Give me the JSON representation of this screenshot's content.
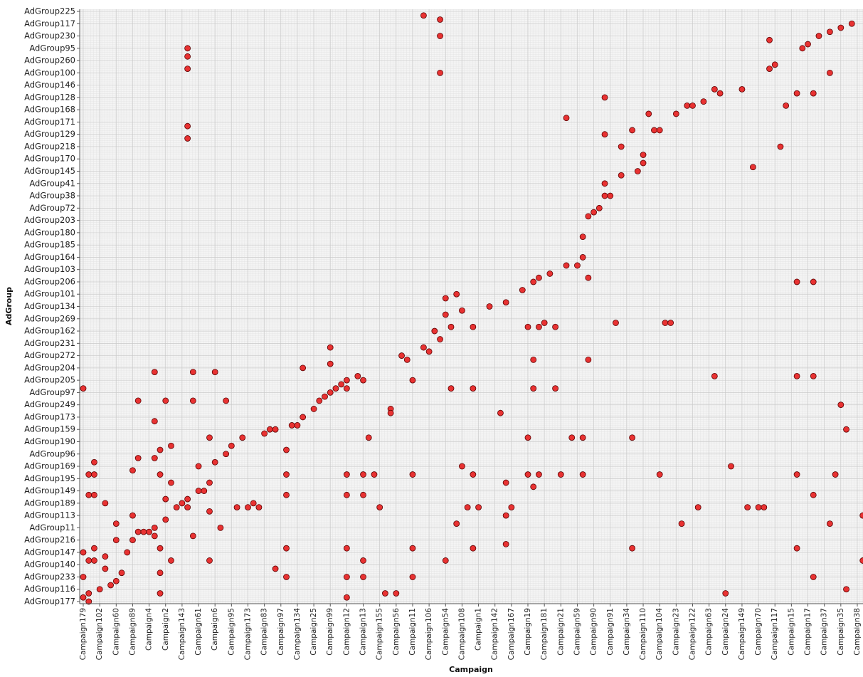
{
  "chart_data": {
    "type": "scatter",
    "x_label": "Campaign",
    "y_label": "AdGroup",
    "color": "#e83232",
    "edge_color": "#5a0000",
    "grid": true,
    "xlim": [
      -0.65,
      142.04
    ],
    "ylim": [
      -0.52,
      144.52
    ],
    "xticks": [
      {
        "value": 0,
        "label": "Campaign179"
      },
      {
        "value": 3,
        "label": "Campaign102"
      },
      {
        "value": 6,
        "label": "Campaign60"
      },
      {
        "value": 9,
        "label": "Campaign89"
      },
      {
        "value": 12,
        "label": "Campaign4"
      },
      {
        "value": 15,
        "label": "Campaign2"
      },
      {
        "value": 18,
        "label": "Campaign143"
      },
      {
        "value": 21,
        "label": "Campaign61"
      },
      {
        "value": 24,
        "label": "Campaign6"
      },
      {
        "value": 27,
        "label": "Campaign95"
      },
      {
        "value": 30,
        "label": "Campaign173"
      },
      {
        "value": 33,
        "label": "Campaign83"
      },
      {
        "value": 36,
        "label": "Campaign97"
      },
      {
        "value": 39,
        "label": "Campaign134"
      },
      {
        "value": 42,
        "label": "Campaign25"
      },
      {
        "value": 45,
        "label": "Campaign99"
      },
      {
        "value": 48,
        "label": "Campaign12"
      },
      {
        "value": 51,
        "label": "Campaign13"
      },
      {
        "value": 54,
        "label": "Campaign155"
      },
      {
        "value": 57,
        "label": "Campaign56"
      },
      {
        "value": 60,
        "label": "Campaign11"
      },
      {
        "value": 63,
        "label": "Campaign106"
      },
      {
        "value": 66,
        "label": "Campaign54"
      },
      {
        "value": 69,
        "label": "Campaign108"
      },
      {
        "value": 72,
        "label": "Campaign1"
      },
      {
        "value": 75,
        "label": "Campaign142"
      },
      {
        "value": 78,
        "label": "Campaign167"
      },
      {
        "value": 81,
        "label": "Campaign19"
      },
      {
        "value": 84,
        "label": "Campaign181"
      },
      {
        "value": 87,
        "label": "Campaign21"
      },
      {
        "value": 90,
        "label": "Campaign59"
      },
      {
        "value": 93,
        "label": "Campaign90"
      },
      {
        "value": 96,
        "label": "Campaign91"
      },
      {
        "value": 99,
        "label": "Campaign34"
      },
      {
        "value": 102,
        "label": "Campaign110"
      },
      {
        "value": 105,
        "label": "Campaign104"
      },
      {
        "value": 108,
        "label": "Campaign23"
      },
      {
        "value": 111,
        "label": "Campaign122"
      },
      {
        "value": 114,
        "label": "Campaign63"
      },
      {
        "value": 117,
        "label": "Campaign24"
      },
      {
        "value": 120,
        "label": "Campaign149"
      },
      {
        "value": 123,
        "label": "Campaign70"
      },
      {
        "value": 126,
        "label": "Campaign117"
      },
      {
        "value": 129,
        "label": "Campaign15"
      },
      {
        "value": 132,
        "label": "Campaign17"
      },
      {
        "value": 135,
        "label": "Campaign37"
      },
      {
        "value": 138,
        "label": "Campaign35"
      },
      {
        "value": 141,
        "label": "Campaign38"
      }
    ],
    "yticks": [
      {
        "value": 0,
        "label": "AdGroup177"
      },
      {
        "value": 3,
        "label": "AdGroup116"
      },
      {
        "value": 6,
        "label": "AdGroup233"
      },
      {
        "value": 9,
        "label": "AdGroup140"
      },
      {
        "value": 12,
        "label": "AdGroup147"
      },
      {
        "value": 15,
        "label": "AdGroup216"
      },
      {
        "value": 18,
        "label": "AdGroup11"
      },
      {
        "value": 21,
        "label": "AdGroup113"
      },
      {
        "value": 24,
        "label": "AdGroup189"
      },
      {
        "value": 27,
        "label": "AdGroup149"
      },
      {
        "value": 30,
        "label": "AdGroup195"
      },
      {
        "value": 33,
        "label": "AdGroup169"
      },
      {
        "value": 36,
        "label": "AdGroup96"
      },
      {
        "value": 39,
        "label": "AdGroup190"
      },
      {
        "value": 42,
        "label": "AdGroup159"
      },
      {
        "value": 45,
        "label": "AdGroup173"
      },
      {
        "value": 48,
        "label": "AdGroup249"
      },
      {
        "value": 51,
        "label": "AdGroup97"
      },
      {
        "value": 54,
        "label": "AdGroup205"
      },
      {
        "value": 57,
        "label": "AdGroup204"
      },
      {
        "value": 60,
        "label": "AdGroup272"
      },
      {
        "value": 63,
        "label": "AdGroup231"
      },
      {
        "value": 66,
        "label": "AdGroup162"
      },
      {
        "value": 69,
        "label": "AdGroup269"
      },
      {
        "value": 72,
        "label": "AdGroup134"
      },
      {
        "value": 75,
        "label": "AdGroup101"
      },
      {
        "value": 78,
        "label": "AdGroup206"
      },
      {
        "value": 81,
        "label": "AdGroup103"
      },
      {
        "value": 84,
        "label": "AdGroup164"
      },
      {
        "value": 87,
        "label": "AdGroup185"
      },
      {
        "value": 90,
        "label": "AdGroup180"
      },
      {
        "value": 93,
        "label": "AdGroup203"
      },
      {
        "value": 96,
        "label": "AdGroup72"
      },
      {
        "value": 99,
        "label": "AdGroup38"
      },
      {
        "value": 102,
        "label": "AdGroup41"
      },
      {
        "value": 105,
        "label": "AdGroup145"
      },
      {
        "value": 108,
        "label": "AdGroup170"
      },
      {
        "value": 111,
        "label": "AdGroup218"
      },
      {
        "value": 114,
        "label": "AdGroup129"
      },
      {
        "value": 117,
        "label": "AdGroup171"
      },
      {
        "value": 120,
        "label": "AdGroup168"
      },
      {
        "value": 123,
        "label": "AdGroup128"
      },
      {
        "value": 126,
        "label": "AdGroup146"
      },
      {
        "value": 129,
        "label": "AdGroup100"
      },
      {
        "value": 132,
        "label": "AdGroup260"
      },
      {
        "value": 135,
        "label": "AdGroup95"
      },
      {
        "value": 138,
        "label": "AdGroup230"
      },
      {
        "value": 141,
        "label": "AdGroup117"
      },
      {
        "value": 144,
        "label": "AdGroup225"
      }
    ],
    "x": [
      0,
      0,
      0,
      0,
      1,
      1,
      1,
      2,
      2,
      1,
      2,
      2,
      2,
      1,
      3,
      4,
      4,
      4,
      5,
      6,
      6,
      6,
      7,
      8,
      9,
      9,
      9,
      10,
      10,
      10,
      11,
      12,
      13,
      13,
      13,
      13,
      13,
      14,
      14,
      14,
      14,
      14,
      15,
      15,
      15,
      16,
      16,
      16,
      17,
      18,
      19,
      19,
      19,
      19,
      19,
      19,
      19,
      20,
      20,
      20,
      21,
      21,
      22,
      23,
      23,
      23,
      23,
      24,
      24,
      25,
      26,
      26,
      27,
      28,
      29,
      30,
      31,
      32,
      33,
      34,
      35,
      35,
      37,
      37,
      37,
      37,
      37,
      38,
      39,
      40,
      40,
      42,
      43,
      44,
      45,
      45,
      45,
      46,
      47,
      48,
      48,
      48,
      48,
      48,
      48,
      48,
      50,
      51,
      51,
      51,
      51,
      51,
      52,
      53,
      54,
      55,
      56,
      56,
      57,
      58,
      59,
      60,
      60,
      60,
      60,
      62,
      62,
      63,
      64,
      65,
      65,
      65,
      65,
      66,
      66,
      66,
      67,
      67,
      68,
      68,
      69,
      69,
      71,
      71,
      71,
      71,
      70,
      72,
      74,
      76,
      77,
      77,
      77,
      77,
      78,
      80,
      81,
      81,
      81,
      82,
      82,
      82,
      82,
      83,
      83,
      83,
      84,
      85,
      86,
      86,
      87,
      88,
      88,
      89,
      90,
      91,
      91,
      91,
      91,
      92,
      92,
      92,
      93,
      94,
      95,
      95,
      95,
      95,
      96,
      97,
      98,
      98,
      100,
      100,
      100,
      101,
      102,
      102,
      103,
      104,
      105,
      105,
      106,
      107,
      108,
      109,
      110,
      111,
      113,
      112,
      115,
      116,
      115,
      117,
      118,
      120,
      122,
      121,
      123,
      124,
      125,
      125,
      126,
      127,
      128,
      130,
      130,
      130,
      130,
      130,
      131,
      132,
      133,
      133,
      133,
      133,
      133,
      134,
      136,
      136,
      136,
      137,
      138,
      138,
      139,
      139,
      140,
      142,
      142
    ],
    "y": [
      52,
      12,
      6,
      1,
      2,
      0,
      31,
      34,
      31,
      26,
      26,
      13,
      10,
      10,
      3,
      11,
      8,
      24,
      4,
      5,
      15,
      19,
      7,
      12,
      15,
      21,
      32,
      35,
      49,
      17,
      17,
      17,
      18,
      16,
      56,
      44,
      35,
      37,
      31,
      13,
      7,
      2,
      49,
      25,
      20,
      38,
      29,
      10,
      23,
      24,
      25,
      135,
      133,
      130,
      116,
      113,
      23,
      56,
      49,
      16,
      33,
      27,
      27,
      40,
      29,
      22,
      10,
      56,
      34,
      18,
      49,
      36,
      38,
      23,
      40,
      23,
      24,
      23,
      41,
      42,
      42,
      8,
      37,
      31,
      26,
      13,
      6,
      43,
      43,
      57,
      45,
      47,
      49,
      50,
      51,
      62,
      58,
      52,
      53,
      54,
      52,
      31,
      26,
      13,
      6,
      1,
      55,
      54,
      31,
      26,
      10,
      6,
      40,
      31,
      23,
      2,
      47,
      46,
      2,
      60,
      59,
      54,
      13,
      6,
      31,
      143,
      62,
      61,
      66,
      142,
      138,
      129,
      64,
      74,
      70,
      10,
      67,
      52,
      75,
      19,
      71,
      33,
      67,
      52,
      31,
      13,
      23,
      23,
      72,
      46,
      73,
      29,
      21,
      14,
      23,
      76,
      67,
      40,
      31,
      78,
      59,
      52,
      28,
      79,
      67,
      31,
      68,
      80,
      67,
      52,
      31,
      82,
      118,
      40,
      82,
      89,
      84,
      31,
      40,
      94,
      79,
      59,
      95,
      96,
      102,
      99,
      123,
      114,
      99,
      68,
      104,
      111,
      115,
      40,
      13,
      105,
      109,
      107,
      119,
      115,
      115,
      31,
      68,
      68,
      119,
      19,
      121,
      121,
      122,
      23,
      125,
      124,
      55,
      2,
      33,
      125,
      106,
      23,
      23,
      23,
      137,
      130,
      131,
      111,
      121,
      124,
      78,
      55,
      31,
      13,
      135,
      136,
      124,
      78,
      55,
      26,
      6,
      138,
      139,
      129,
      19,
      31,
      140,
      48,
      42,
      3,
      141,
      21,
      10
    ]
  }
}
